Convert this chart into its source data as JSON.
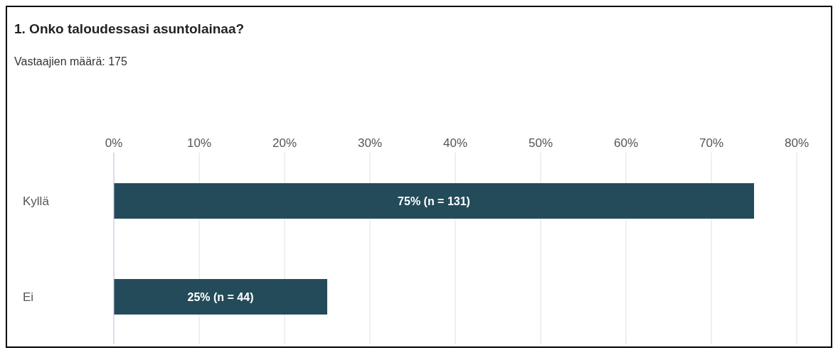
{
  "chart_data": {
    "type": "bar",
    "orientation": "horizontal",
    "title": "1. Onko taloudessasi asuntolainaa?",
    "subtitle": "Vastaajien määrä: 175",
    "categories": [
      "Kyllä",
      "Ei"
    ],
    "values": [
      75,
      25
    ],
    "color": "#234b5a",
    "value_labels": [
      "75% (n = 131)",
      "25% (n = 44)"
    ],
    "xlim": [
      0,
      80
    ],
    "xticks": [
      {
        "value": 0,
        "label": "0%"
      },
      {
        "value": 10,
        "label": "10%"
      },
      {
        "value": 20,
        "label": "20%"
      },
      {
        "value": 30,
        "label": "30%"
      },
      {
        "value": 40,
        "label": "40%"
      },
      {
        "value": 50,
        "label": "50%"
      },
      {
        "value": 60,
        "label": "60%"
      },
      {
        "value": 70,
        "label": "70%"
      },
      {
        "value": 80,
        "label": "80%"
      }
    ],
    "grid": "x",
    "legend": false
  }
}
